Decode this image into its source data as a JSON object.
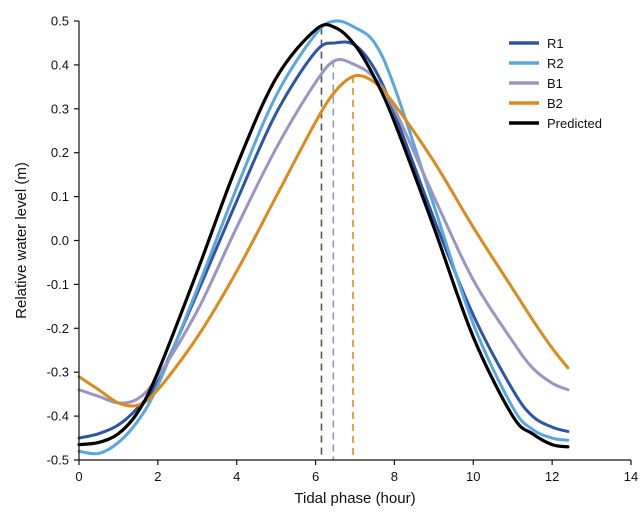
{
  "chart_data": {
    "type": "line",
    "title": "",
    "xlabel": "Tidal phase (hour)",
    "ylabel": "Relative water level (m)",
    "xlim": [
      0,
      14
    ],
    "ylim": [
      -0.5,
      0.5
    ],
    "x_ticks": [
      "0",
      "2",
      "4",
      "6",
      "8",
      "10",
      "12",
      "14"
    ],
    "y_ticks": [
      "-0.5",
      "-0.4",
      "-0.3",
      "-0.2",
      "-0.1",
      "0.0",
      "0.1",
      "0.2",
      "0.3",
      "0.4",
      "0.5"
    ],
    "grid": false,
    "legend_position": "top-right",
    "series": [
      {
        "name": "R1",
        "color": "#2e55a4",
        "points": [
          [
            0,
            -0.45
          ],
          [
            0.5,
            -0.44
          ],
          [
            1,
            -0.42
          ],
          [
            1.5,
            -0.38
          ],
          [
            2,
            -0.32
          ],
          [
            3,
            -0.12
          ],
          [
            4,
            0.09
          ],
          [
            5,
            0.29
          ],
          [
            6,
            0.43
          ],
          [
            6.5,
            0.45
          ],
          [
            7,
            0.445
          ],
          [
            7.5,
            0.39
          ],
          [
            8,
            0.29
          ],
          [
            9,
            0.05
          ],
          [
            10,
            -0.17
          ],
          [
            11,
            -0.34
          ],
          [
            11.5,
            -0.4
          ],
          [
            12,
            -0.425
          ],
          [
            12.4,
            -0.435
          ]
        ]
      },
      {
        "name": "R2",
        "color": "#5ba6dc",
        "points": [
          [
            0,
            -0.48
          ],
          [
            0.5,
            -0.485
          ],
          [
            1,
            -0.46
          ],
          [
            1.5,
            -0.41
          ],
          [
            2,
            -0.33
          ],
          [
            3,
            -0.11
          ],
          [
            4,
            0.12
          ],
          [
            5,
            0.33
          ],
          [
            6,
            0.47
          ],
          [
            6.5,
            0.5
          ],
          [
            7,
            0.485
          ],
          [
            7.5,
            0.45
          ],
          [
            8,
            0.35
          ],
          [
            9,
            0.08
          ],
          [
            10,
            -0.19
          ],
          [
            11,
            -0.38
          ],
          [
            11.5,
            -0.43
          ],
          [
            12,
            -0.45
          ],
          [
            12.4,
            -0.455
          ]
        ]
      },
      {
        "name": "B1",
        "color": "#9a96c4",
        "points": [
          [
            0,
            -0.34
          ],
          [
            0.5,
            -0.355
          ],
          [
            1,
            -0.37
          ],
          [
            1.5,
            -0.36
          ],
          [
            2,
            -0.31
          ],
          [
            3,
            -0.16
          ],
          [
            4,
            0.03
          ],
          [
            5,
            0.21
          ],
          [
            6,
            0.36
          ],
          [
            6.5,
            0.41
          ],
          [
            7,
            0.4
          ],
          [
            7.5,
            0.37
          ],
          [
            8,
            0.3
          ],
          [
            9,
            0.1
          ],
          [
            10,
            -0.09
          ],
          [
            11,
            -0.23
          ],
          [
            11.5,
            -0.29
          ],
          [
            12,
            -0.325
          ],
          [
            12.4,
            -0.34
          ]
        ]
      },
      {
        "name": "B2",
        "color": "#dc8a1c",
        "points": [
          [
            0,
            -0.31
          ],
          [
            0.5,
            -0.34
          ],
          [
            1,
            -0.37
          ],
          [
            1.5,
            -0.375
          ],
          [
            2,
            -0.34
          ],
          [
            3,
            -0.22
          ],
          [
            4,
            -0.07
          ],
          [
            5,
            0.1
          ],
          [
            6,
            0.27
          ],
          [
            6.5,
            0.34
          ],
          [
            7,
            0.375
          ],
          [
            7.5,
            0.36
          ],
          [
            8,
            0.31
          ],
          [
            9,
            0.18
          ],
          [
            10,
            0.03
          ],
          [
            11,
            -0.11
          ],
          [
            11.5,
            -0.18
          ],
          [
            12,
            -0.245
          ],
          [
            12.4,
            -0.29
          ]
        ]
      },
      {
        "name": "Predicted",
        "color": "#000000",
        "points": [
          [
            0,
            -0.465
          ],
          [
            0.5,
            -0.46
          ],
          [
            1,
            -0.44
          ],
          [
            1.5,
            -0.39
          ],
          [
            2,
            -0.3
          ],
          [
            3,
            -0.07
          ],
          [
            4,
            0.17
          ],
          [
            5,
            0.37
          ],
          [
            6,
            0.48
          ],
          [
            6.5,
            0.485
          ],
          [
            7,
            0.445
          ],
          [
            7.5,
            0.37
          ],
          [
            8,
            0.27
          ],
          [
            9,
            0.03
          ],
          [
            10,
            -0.22
          ],
          [
            11,
            -0.4
          ],
          [
            11.5,
            -0.44
          ],
          [
            12,
            -0.465
          ],
          [
            12.4,
            -0.47
          ]
        ]
      }
    ],
    "vlines": [
      {
        "x": 6.15,
        "y_top": 0.485,
        "color": "#555555"
      },
      {
        "x": 6.45,
        "y_top": 0.41,
        "color": "#9a96c4"
      },
      {
        "x": 6.95,
        "y_top": 0.375,
        "color": "#dc8a1c"
      }
    ]
  }
}
